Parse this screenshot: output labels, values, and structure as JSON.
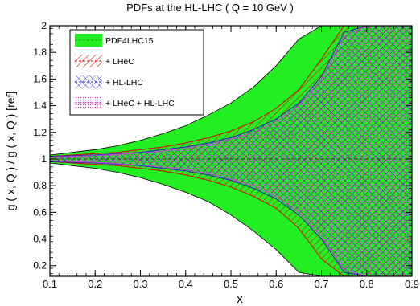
{
  "chart_data": {
    "type": "area",
    "title": "PDFs at the HL-LHC ( Q = 10 GeV )",
    "xlabel": "x",
    "ylabel": "g ( x, Q ) / g ( x, Q ) [ref]",
    "xlim": [
      0.1,
      0.9
    ],
    "ylim": [
      0.12,
      2.0
    ],
    "log_scale": false,
    "grid": false,
    "legend_position": "top-left",
    "x_ticks": [
      0.1,
      0.2,
      0.3,
      0.4,
      0.5,
      0.6,
      0.7,
      0.8,
      0.9
    ],
    "x_tick_labels": [
      "0.1",
      "0.2",
      "0.3",
      "0.4",
      "0.5",
      "0.6",
      "0.7",
      "0.8",
      "0.9"
    ],
    "y_ticks": [
      0.2,
      0.4,
      0.6,
      0.8,
      1.0,
      1.2,
      1.4,
      1.6,
      1.8,
      2.0
    ],
    "y_tick_labels": [
      "0.2",
      "0.4",
      "0.6",
      "0.8",
      "1",
      "1.2",
      "1.4",
      "1.6",
      "1.8",
      "2"
    ],
    "central_value": 1.0,
    "series": [
      {
        "name": "PDF4LHC15",
        "color": "#22ee22",
        "style": "solid-fill",
        "x": [
          0.1,
          0.15,
          0.2,
          0.25,
          0.3,
          0.35,
          0.4,
          0.45,
          0.5,
          0.55,
          0.6,
          0.65,
          0.7,
          0.75,
          0.8,
          0.85,
          0.9
        ],
        "upper": [
          1.03,
          1.05,
          1.07,
          1.1,
          1.14,
          1.19,
          1.25,
          1.33,
          1.42,
          1.54,
          1.7,
          1.9,
          2.0,
          2.0,
          2.0,
          2.0,
          2.0
        ],
        "lower": [
          0.97,
          0.95,
          0.93,
          0.9,
          0.86,
          0.81,
          0.75,
          0.68,
          0.58,
          0.46,
          0.32,
          0.15,
          0.12,
          0.12,
          0.12,
          0.12,
          0.12
        ]
      },
      {
        "name": "+ LHeC",
        "color": "#dd0000",
        "style": "hatch-diagonal",
        "x": [
          0.1,
          0.15,
          0.2,
          0.25,
          0.3,
          0.35,
          0.4,
          0.45,
          0.5,
          0.55,
          0.6,
          0.65,
          0.7,
          0.75,
          0.8,
          0.85,
          0.9
        ],
        "upper": [
          1.02,
          1.03,
          1.04,
          1.05,
          1.07,
          1.09,
          1.12,
          1.16,
          1.21,
          1.28,
          1.38,
          1.52,
          1.75,
          2.0,
          2.0,
          2.0,
          2.0
        ],
        "lower": [
          0.98,
          0.97,
          0.96,
          0.95,
          0.93,
          0.91,
          0.88,
          0.84,
          0.79,
          0.72,
          0.63,
          0.48,
          0.25,
          0.12,
          0.12,
          0.12,
          0.12
        ]
      },
      {
        "name": "+ HL-LHC",
        "color": "#2222cc",
        "style": "hatch-cross",
        "x": [
          0.1,
          0.15,
          0.2,
          0.25,
          0.3,
          0.35,
          0.4,
          0.45,
          0.5,
          0.55,
          0.6,
          0.65,
          0.7,
          0.75,
          0.8,
          0.85,
          0.9
        ],
        "upper": [
          1.02,
          1.025,
          1.03,
          1.04,
          1.05,
          1.07,
          1.09,
          1.12,
          1.16,
          1.22,
          1.3,
          1.42,
          1.62,
          1.95,
          2.0,
          2.0,
          2.0
        ],
        "lower": [
          0.98,
          0.975,
          0.97,
          0.96,
          0.95,
          0.93,
          0.91,
          0.88,
          0.84,
          0.78,
          0.7,
          0.58,
          0.4,
          0.15,
          0.12,
          0.12,
          0.12
        ]
      },
      {
        "name": "+ LHeC + HL-LHC",
        "color": "#cc44cc",
        "style": "dotted-fill",
        "x": [
          0.1,
          0.15,
          0.2,
          0.25,
          0.3,
          0.35,
          0.4,
          0.45,
          0.5,
          0.55,
          0.6,
          0.65,
          0.7,
          0.75,
          0.8,
          0.85,
          0.9
        ],
        "upper": [
          1.015,
          1.02,
          1.025,
          1.035,
          1.045,
          1.06,
          1.08,
          1.11,
          1.15,
          1.2,
          1.28,
          1.4,
          1.6,
          1.92,
          2.0,
          2.0,
          2.0
        ],
        "lower": [
          0.985,
          0.98,
          0.975,
          0.965,
          0.955,
          0.94,
          0.92,
          0.89,
          0.85,
          0.8,
          0.72,
          0.6,
          0.42,
          0.17,
          0.12,
          0.12,
          0.12
        ]
      }
    ]
  }
}
